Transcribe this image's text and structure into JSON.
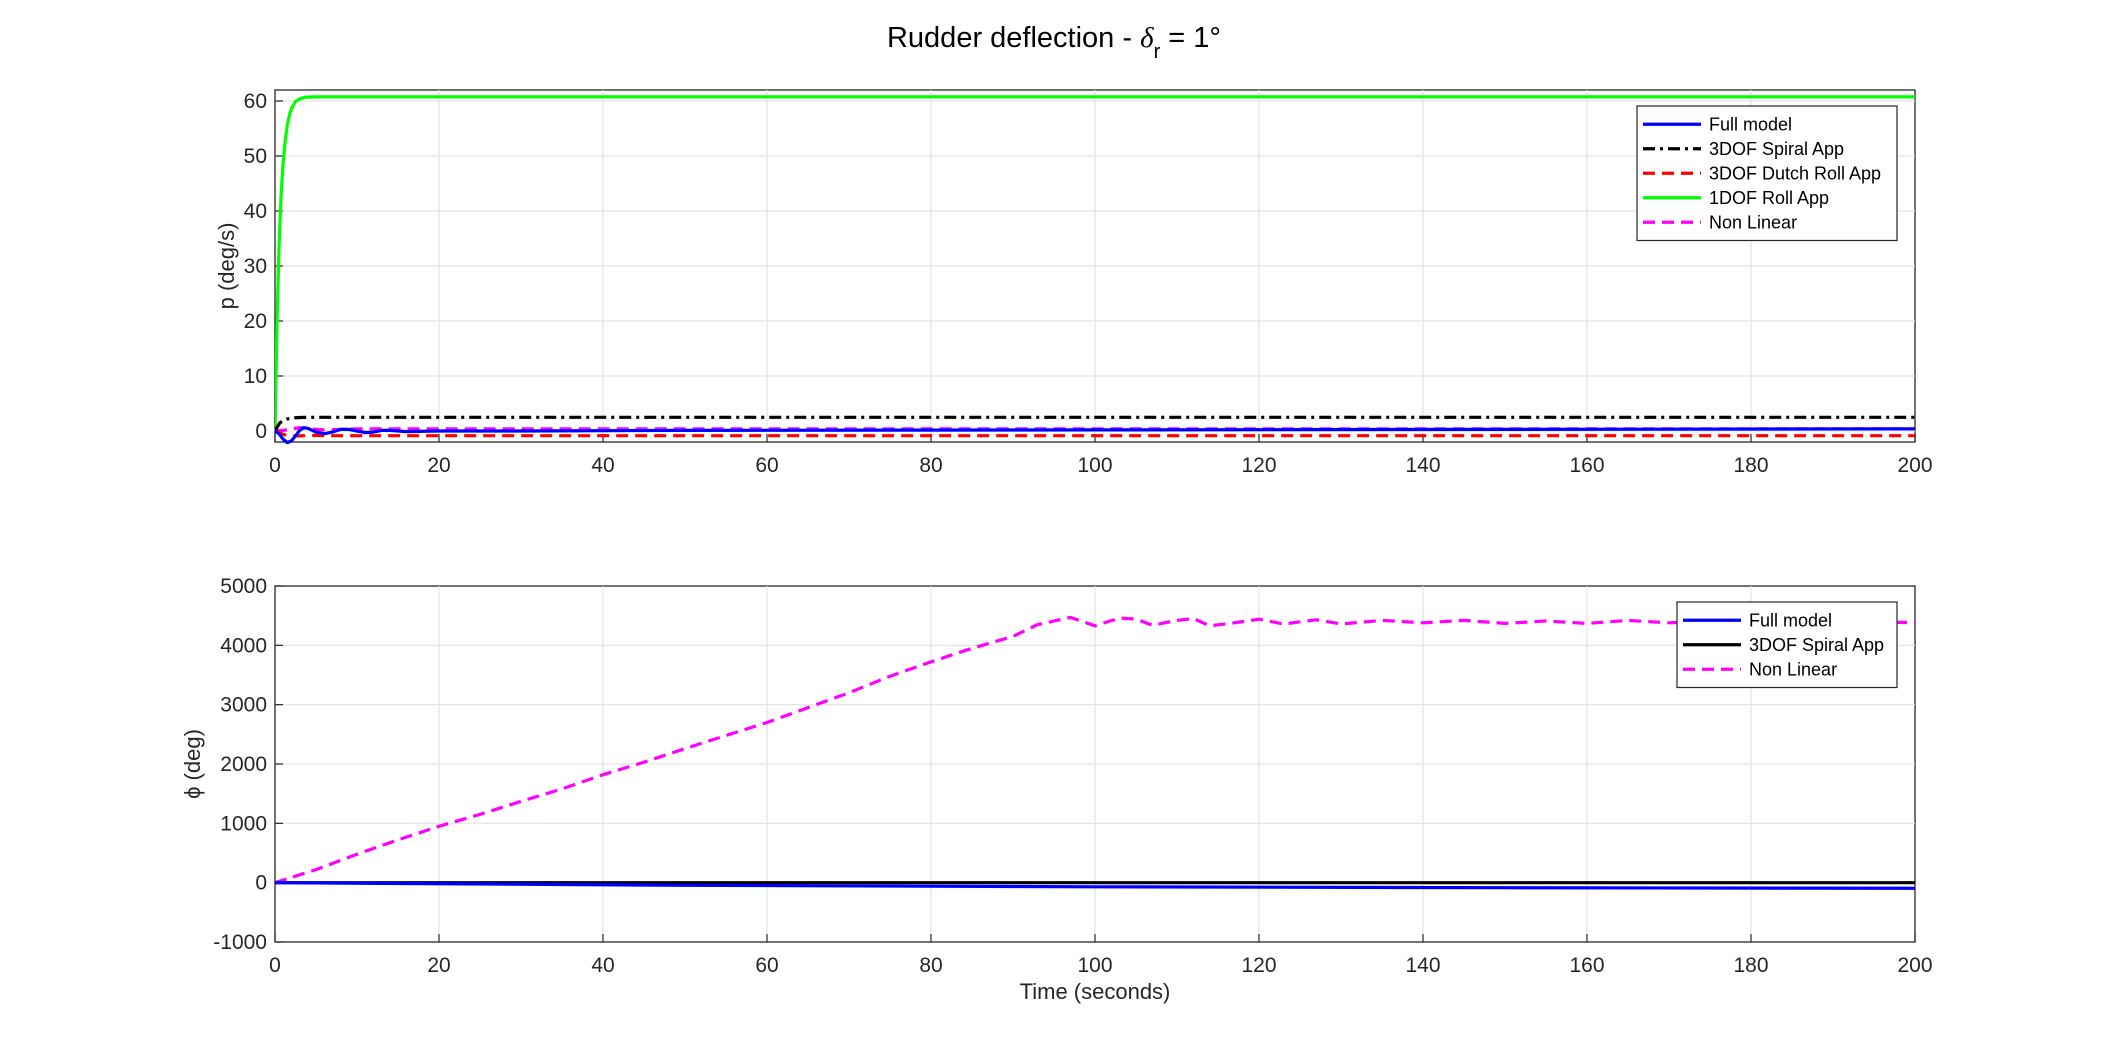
{
  "figure": {
    "title_main": "Rudder deflection - ",
    "title_symbol": "δ",
    "title_subscript": "r",
    "title_tail": " = 1°"
  },
  "chart_data": [
    {
      "type": "line",
      "title": "Rudder deflection - δr = 1°",
      "xlabel": "",
      "ylabel": "p (deg/s)",
      "xlim": [
        0,
        200
      ],
      "ylim": [
        -2,
        62
      ],
      "xticks": [
        0,
        20,
        40,
        60,
        80,
        100,
        120,
        140,
        160,
        180,
        200
      ],
      "xtick_labels": [
        "0",
        "20",
        "40",
        "60",
        "80",
        "100",
        "120",
        "140",
        "160",
        "180",
        "200"
      ],
      "yticks": [
        0,
        10,
        20,
        30,
        40,
        50,
        60
      ],
      "ytick_labels": [
        "0",
        "10",
        "20",
        "30",
        "40",
        "50",
        "60"
      ],
      "grid": true,
      "legend_position": "top-right",
      "series": [
        {
          "name": "Full model",
          "color": "#0000ff",
          "dash": "solid",
          "x": [
            0,
            0.5,
            1,
            1.5,
            2,
            2.5,
            3,
            3.5,
            4,
            5,
            6,
            7,
            8,
            9,
            10,
            11,
            12,
            13,
            14,
            16,
            20,
            30,
            50,
            100,
            150,
            200
          ],
          "y": [
            0,
            -0.5,
            -1.5,
            -2.1,
            -1.8,
            -0.9,
            0.1,
            0.6,
            0.5,
            -0.2,
            -0.5,
            -0.2,
            0.3,
            0.3,
            0,
            -0.3,
            -0.2,
            0.1,
            0.1,
            -0.1,
            0,
            0,
            0.1,
            0.2,
            0.3,
            0.4
          ]
        },
        {
          "name": "3DOF Spiral App",
          "color": "#000000",
          "dash": "dashdot",
          "x": [
            0,
            0.3,
            0.6,
            1,
            1.5,
            2,
            3,
            4,
            5,
            8,
            200
          ],
          "y": [
            0,
            0.8,
            1.5,
            1.9,
            2.2,
            2.35,
            2.45,
            2.5,
            2.5,
            2.5,
            2.5
          ]
        },
        {
          "name": "3DOF Dutch Roll App",
          "color": "#ff0000",
          "dash": "dashed",
          "x": [
            0,
            0.5,
            1,
            1.5,
            2,
            3,
            4,
            5,
            6,
            8,
            10,
            200
          ],
          "y": [
            0,
            -0.3,
            -0.6,
            -0.8,
            -0.9,
            -0.9,
            -0.8,
            -0.8,
            -0.85,
            -0.85,
            -0.85,
            -0.85
          ]
        },
        {
          "name": "1DOF Roll App",
          "color": "#00ff00",
          "dash": "solid",
          "x": [
            0,
            0.25,
            0.5,
            0.75,
            1,
            1.25,
            1.5,
            1.75,
            2,
            2.5,
            3,
            3.5,
            4,
            5,
            6,
            8,
            200
          ],
          "y": [
            0,
            20.3,
            33.9,
            42.9,
            48.9,
            52.9,
            55.6,
            57.4,
            58.6,
            59.9,
            60.4,
            60.6,
            60.7,
            60.75,
            60.75,
            60.75,
            60.75
          ]
        },
        {
          "name": "Non Linear",
          "color": "#ff00ff",
          "dash": "dashed",
          "x": [
            0,
            1,
            2,
            3,
            4,
            5,
            6,
            8,
            10,
            14,
            20,
            40,
            60,
            100,
            200
          ],
          "y": [
            0,
            0.1,
            0.4,
            0.6,
            0.5,
            0.3,
            0.2,
            0.3,
            0.4,
            0.4,
            0.4,
            0.4,
            0.4,
            0.4,
            0.4
          ]
        }
      ]
    },
    {
      "type": "line",
      "xlabel": "Time (seconds)",
      "ylabel": "ϕ (deg)",
      "xlim": [
        0,
        200
      ],
      "ylim": [
        -1000,
        5000
      ],
      "xticks": [
        0,
        20,
        40,
        60,
        80,
        100,
        120,
        140,
        160,
        180,
        200
      ],
      "xtick_labels": [
        "0",
        "20",
        "40",
        "60",
        "80",
        "100",
        "120",
        "140",
        "160",
        "180",
        "200"
      ],
      "yticks": [
        -1000,
        0,
        1000,
        2000,
        3000,
        4000,
        5000
      ],
      "ytick_labels": [
        "-1000",
        "0",
        "1000",
        "2000",
        "3000",
        "4000",
        "5000"
      ],
      "grid": true,
      "legend_position": "top-right",
      "series": [
        {
          "name": "Full model",
          "color": "#0000ff",
          "dash": "solid",
          "x": [
            0,
            50,
            100,
            150,
            200
          ],
          "y": [
            0,
            -45,
            -70,
            -85,
            -95
          ]
        },
        {
          "name": "3DOF Spiral App",
          "color": "#000000",
          "dash": "solid",
          "x": [
            0,
            200
          ],
          "y": [
            0,
            0
          ]
        },
        {
          "name": "Non Linear",
          "color": "#ff00ff",
          "dash": "dashed",
          "x": [
            0,
            5,
            10,
            15,
            20,
            25,
            30,
            35,
            40,
            45,
            50,
            55,
            60,
            65,
            70,
            75,
            80,
            85,
            90,
            93,
            97,
            100,
            103,
            105,
            107,
            110,
            112,
            114,
            117,
            120,
            123,
            127,
            130,
            135,
            140,
            145,
            150,
            155,
            160,
            165,
            170,
            175,
            180,
            185,
            190,
            195,
            200
          ],
          "y": [
            0,
            220,
            480,
            720,
            950,
            1150,
            1370,
            1580,
            1820,
            2030,
            2260,
            2480,
            2700,
            2950,
            3200,
            3480,
            3720,
            3950,
            4150,
            4350,
            4470,
            4330,
            4460,
            4440,
            4340,
            4420,
            4450,
            4330,
            4380,
            4440,
            4360,
            4430,
            4360,
            4420,
            4380,
            4420,
            4370,
            4410,
            4370,
            4420,
            4380,
            4410,
            4380,
            4410,
            4390,
            4400,
            4380
          ]
        }
      ]
    }
  ]
}
